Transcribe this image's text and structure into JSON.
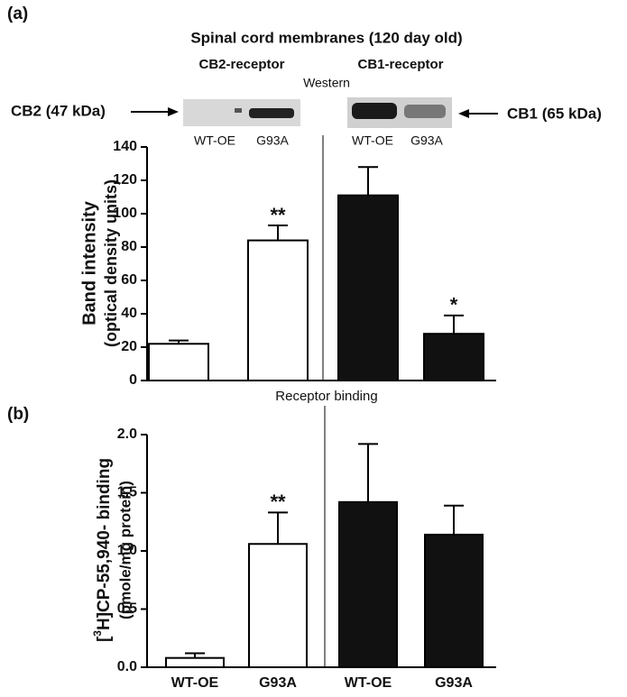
{
  "chart_data": [
    {
      "type": "bar",
      "panel_label": "(a)",
      "title": "Spinal cord membranes (120 day old)",
      "subtitles": [
        "CB2-receptor",
        "CB1-receptor"
      ],
      "method_label": "Western",
      "band_labels": [
        "CB2 (47 kDa)",
        "CB1 (65 kDa)"
      ],
      "ylabel": [
        "Band intensity",
        "(optical density units)"
      ],
      "categories": [
        "WT-OE",
        "G93A",
        "WT-OE",
        "G93A"
      ],
      "values": [
        22,
        84,
        111,
        28
      ],
      "errors": [
        2,
        9,
        17,
        11
      ],
      "colors": [
        "#ffffff",
        "#ffffff",
        "#111111",
        "#111111"
      ],
      "significance": [
        null,
        "**",
        null,
        "*"
      ],
      "ylim": [
        0,
        140
      ],
      "yticks": [
        0,
        20,
        40,
        60,
        80,
        100,
        120,
        140
      ]
    },
    {
      "type": "bar",
      "panel_label": "(b)",
      "method_label": "Receptor binding",
      "ylabel": {
        "pre": "[",
        "sup": "3",
        "post": "H]CP-55,940- binding",
        "line2": "(pmole/mg protein)"
      },
      "categories": [
        "WT-OE",
        "G93A",
        "WT-OE",
        "G93A"
      ],
      "values": [
        0.08,
        1.06,
        1.42,
        1.14
      ],
      "errors": [
        0.04,
        0.27,
        0.5,
        0.25
      ],
      "colors": [
        "#ffffff",
        "#ffffff",
        "#111111",
        "#111111"
      ],
      "significance": [
        null,
        "**",
        null,
        null
      ],
      "ylim": [
        0,
        2.0
      ],
      "yticks": [
        {
          "value": 0,
          "label": "0.0"
        },
        0.5,
        {
          "value": 1,
          "label": "1.0"
        },
        1.5,
        {
          "value": 2,
          "label": "2.0"
        }
      ]
    }
  ]
}
